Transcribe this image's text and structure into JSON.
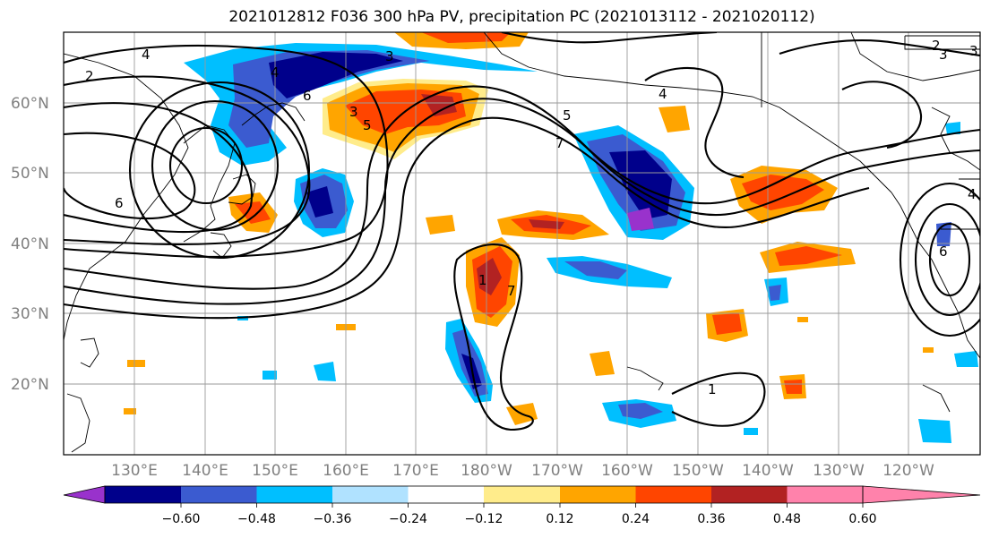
{
  "title": "2021012812 F036 300 hPa PV, precipitation PC (2021013112 - 2021020112)",
  "map": {
    "lat_labels": [
      "60°N",
      "50°N",
      "40°N",
      "30°N",
      "20°N"
    ],
    "lon_labels": [
      "130°E",
      "140°E",
      "150°E",
      "160°E",
      "170°E",
      "180°W",
      "170°W",
      "160°W",
      "150°W",
      "140°W",
      "130°W",
      "120°W"
    ],
    "contour_labels": [
      "2",
      "4",
      "3",
      "6",
      "5",
      "7",
      "4",
      "3",
      "5",
      "6",
      "4",
      "7",
      "1",
      "2",
      "3",
      "4",
      "6",
      "3",
      "1"
    ]
  },
  "colorbar": {
    "tick_labels": [
      "−0.60",
      "−0.48",
      "−0.36",
      "−0.24",
      "−0.12",
      "0.12",
      "0.24",
      "0.36",
      "0.48",
      "0.60"
    ],
    "colors": [
      "#9932cc",
      "#00008b",
      "#3b5bd0",
      "#00bfff",
      "#b0e2ff",
      "#ffffff",
      "#ffec8b",
      "#ffa500",
      "#ff4500",
      "#b22222",
      "#ff82ab"
    ]
  }
}
